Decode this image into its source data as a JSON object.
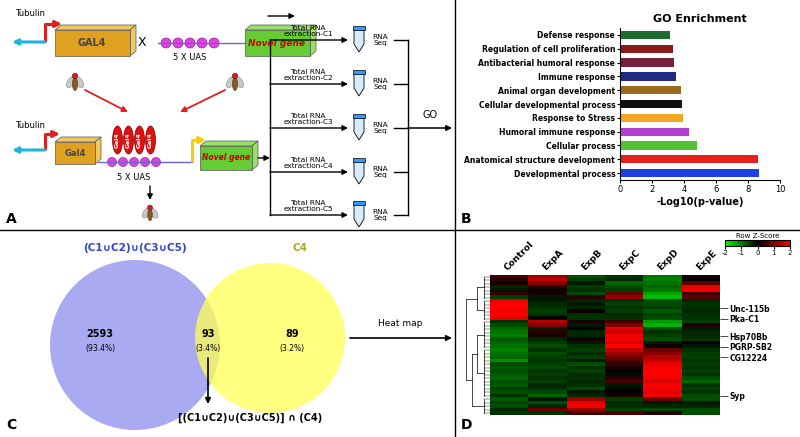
{
  "panel_labels": [
    "A",
    "B",
    "C",
    "D"
  ],
  "diagram": {
    "cross": {
      "promoter": "Tubulin",
      "driver": "GAL4",
      "operator": "X",
      "uas": "5 X UAS",
      "gene": "Novel gene"
    },
    "progeny": {
      "promoter": "Tubulin",
      "driver": "Gal4",
      "bound": "Gal4",
      "uas": "5 X UAS",
      "gene": "Novel gene"
    },
    "extractions": [
      "Total RNA\nextraction-C1",
      "Total RNA\nextraction-C2",
      "Total RNA\nextraction-C3",
      "Total RNA\nextraction-C4",
      "Total RNA\nextraction-C5"
    ],
    "sequencing": "RNA\nSeq",
    "analysis": "GO"
  },
  "chart_data": [
    {
      "type": "bar",
      "orientation": "horizontal",
      "title": "GO Enrichment",
      "x_label": "-Log10(p-value)",
      "categories": [
        "Defense response",
        "Regulation of cell proliferation",
        "Antibacterial humoral response",
        "Immune response",
        "Animal organ development",
        "Cellular developmental process",
        "Response to Stress",
        "Humoral immune response",
        "Cellular process",
        "Anatomical structure development",
        "Developmental process"
      ],
      "values": [
        3.1,
        3.3,
        3.35,
        3.5,
        3.8,
        3.9,
        3.95,
        4.3,
        4.8,
        8.6,
        8.7
      ],
      "colors": [
        "#1e6b2e",
        "#8b1a1a",
        "#7a1f3d",
        "#1f2a80",
        "#9a6a1f",
        "#111111",
        "#f5a623",
        "#b040d0",
        "#52c234",
        "#e8201a",
        "#2040e0"
      ],
      "xlim": [
        0,
        10
      ],
      "xticks": [
        0,
        2,
        4,
        6,
        8,
        10
      ]
    },
    {
      "type": "heatmap",
      "columns": [
        "Control",
        "ExpA",
        "ExpB",
        "ExpC",
        "ExpD",
        "ExpE"
      ],
      "rows": [
        null,
        null,
        null,
        null,
        null,
        null,
        null,
        null,
        null,
        "Unc-115b",
        null,
        null,
        "Pka-C1",
        null,
        null,
        null,
        null,
        "Hsp70Bb",
        null,
        null,
        "PGRP-SB2",
        null,
        null,
        "CG12224",
        null,
        null,
        null,
        null,
        null,
        null,
        null,
        null,
        null,
        null,
        "Syp",
        null,
        null,
        null,
        null,
        null
      ],
      "cells": [
        [
          0.5,
          1.2,
          -0.6,
          -0.4,
          -0.9,
          0.2
        ],
        [
          0.3,
          1.5,
          -0.5,
          -0.3,
          -1.0,
          0.0
        ],
        [
          0.2,
          1.0,
          -0.2,
          -0.8,
          -0.9,
          0.7
        ],
        [
          -0.3,
          0.4,
          -0.5,
          -0.6,
          -0.8,
          1.8
        ],
        [
          -0.2,
          0.1,
          -0.4,
          -0.5,
          -0.9,
          1.9
        ],
        [
          0.4,
          0.2,
          -0.6,
          0.8,
          -1.3,
          0.5
        ],
        [
          -0.5,
          -0.2,
          0.3,
          1.2,
          -1.5,
          0.7
        ],
        [
          1.8,
          -0.2,
          -0.3,
          -0.4,
          -0.6,
          -0.3
        ],
        [
          2.0,
          -0.3,
          -0.2,
          -0.5,
          -0.6,
          -0.4
        ],
        [
          2.0,
          -0.4,
          -0.3,
          -0.4,
          -0.5,
          -0.4
        ],
        [
          1.9,
          -0.5,
          0.1,
          -0.5,
          -0.7,
          -0.3
        ],
        [
          2.0,
          -0.4,
          -0.4,
          -0.3,
          -0.5,
          -0.4
        ],
        [
          1.8,
          0.0,
          -0.4,
          -0.4,
          -0.6,
          -0.4
        ],
        [
          -0.4,
          1.4,
          0.2,
          0.5,
          -1.2,
          -0.5
        ],
        [
          -0.6,
          1.0,
          -0.2,
          1.0,
          -1.4,
          0.2
        ],
        [
          -0.8,
          -0.2,
          0.0,
          1.8,
          -0.6,
          -0.2
        ],
        [
          -0.9,
          0.3,
          -0.3,
          1.6,
          -0.4,
          -0.3
        ],
        [
          -1.0,
          0.2,
          -0.3,
          1.9,
          -0.5,
          -0.3
        ],
        [
          -0.7,
          -0.3,
          0.1,
          1.9,
          -0.6,
          -0.4
        ],
        [
          -0.8,
          -0.5,
          -0.2,
          1.7,
          -0.2,
          0.0
        ],
        [
          -0.9,
          -0.6,
          -0.4,
          2.0,
          0.1,
          -0.2
        ],
        [
          -1.0,
          -0.4,
          -0.5,
          1.5,
          0.8,
          -0.4
        ],
        [
          -0.9,
          -0.6,
          -0.3,
          1.2,
          1.1,
          -0.5
        ],
        [
          -0.8,
          -0.5,
          -0.5,
          0.9,
          1.4,
          -0.5
        ],
        [
          -1.1,
          -0.4,
          -0.2,
          0.6,
          1.5,
          -0.4
        ],
        [
          -0.6,
          -0.5,
          -0.6,
          0.4,
          1.8,
          -0.5
        ],
        [
          -0.7,
          -0.6,
          -0.4,
          0.2,
          1.9,
          -0.4
        ],
        [
          -0.6,
          -0.4,
          -0.5,
          0.0,
          2.0,
          -0.5
        ],
        [
          -0.7,
          -0.5,
          -0.3,
          -0.1,
          2.0,
          -0.4
        ],
        [
          -0.8,
          -0.4,
          -0.4,
          0.3,
          1.9,
          -0.6
        ],
        [
          -0.6,
          -0.5,
          -0.3,
          0.5,
          1.7,
          -0.8
        ],
        [
          -0.7,
          -0.3,
          -0.4,
          -0.2,
          2.0,
          -0.4
        ],
        [
          -0.5,
          -0.4,
          -0.6,
          0.1,
          1.9,
          -0.5
        ],
        [
          -0.6,
          -0.6,
          -0.2,
          0.0,
          1.8,
          -0.4
        ],
        [
          -0.4,
          -0.8,
          -0.3,
          0.2,
          1.9,
          -0.6
        ],
        [
          -0.7,
          -0.2,
          1.2,
          -0.5,
          0.8,
          -0.6
        ],
        [
          -0.5,
          -0.6,
          1.8,
          -0.3,
          -0.2,
          -0.2
        ],
        [
          -0.6,
          -0.3,
          1.9,
          -0.4,
          -0.3,
          -0.3
        ],
        [
          -0.3,
          0.8,
          1.2,
          -0.5,
          -0.6,
          -0.6
        ],
        [
          -0.4,
          -0.4,
          0.5,
          0.6,
          0.3,
          -0.6
        ]
      ],
      "colorbar_range": [
        -2,
        2
      ],
      "colorbar_ticks": [
        -2,
        -1,
        0,
        1,
        2
      ],
      "colorbar_label": "Row Z-Score"
    }
  ],
  "venn": {
    "left_set": "(C1∪C2)∪(C3∪C5)",
    "right_set": "C4",
    "left_only": {
      "count": "2593",
      "percent": "(93.4%)"
    },
    "both": {
      "count": "93",
      "percent": "(3.4%)"
    },
    "right_only": {
      "count": "89",
      "percent": "(3.2%)"
    },
    "intersection": "[(C1∪C2)∪(C3∪C5)] ∩ (C4)"
  },
  "arrow_label": "Heat map"
}
